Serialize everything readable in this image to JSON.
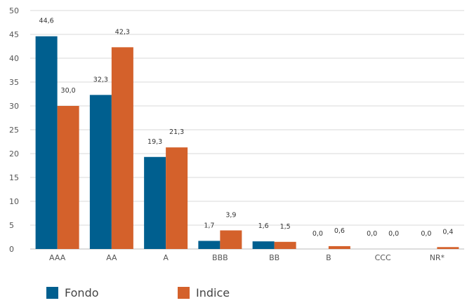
{
  "chart_data": {
    "type": "bar",
    "categories": [
      "AAA",
      "AA",
      "A",
      "BBB",
      "BB",
      "B",
      "CCC",
      "NR*"
    ],
    "series": [
      {
        "name": "Fondo",
        "values": [
          44.6,
          32.3,
          19.3,
          1.7,
          1.6,
          0.0,
          0.0,
          0.0
        ],
        "labels": [
          "44,6",
          "32,3",
          "19,3",
          "1,7",
          "1,6",
          "0,0",
          "0,0",
          "0,0"
        ],
        "color": "#005F8F"
      },
      {
        "name": "Indice",
        "values": [
          30.0,
          42.3,
          21.3,
          3.9,
          1.5,
          0.6,
          0.0,
          0.4
        ],
        "labels": [
          "30,0",
          "42,3",
          "21,3",
          "3,9",
          "1,5",
          "0,6",
          "0,0",
          "0,4"
        ],
        "color": "#D4612B"
      }
    ],
    "ylim": [
      0,
      50
    ],
    "yticks": [
      "0",
      "5",
      "10",
      "15",
      "20",
      "25",
      "30",
      "35",
      "40",
      "45",
      "50"
    ],
    "grid": true,
    "legend_position": "bottom"
  }
}
